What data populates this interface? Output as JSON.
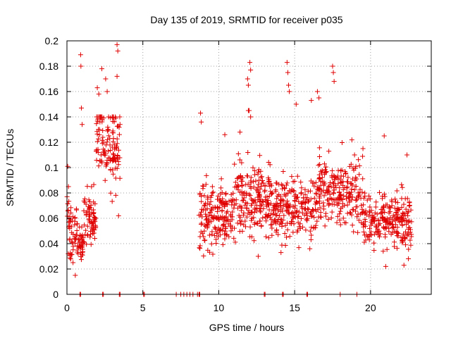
{
  "chart_data": {
    "type": "scatter",
    "title": "Day 135 of 2019, SRMTID for receiver p035",
    "xlabel": "GPS time / hours",
    "ylabel": "SRMTID / TECUs",
    "xlim": [
      0,
      24
    ],
    "ylim": [
      0,
      0.2
    ],
    "x_ticks": [
      0,
      5,
      10,
      15,
      20
    ],
    "x_tick_labels": [
      "0",
      "5",
      "10",
      "15",
      "20"
    ],
    "y_ticks": [
      0,
      0.02,
      0.04,
      0.06,
      0.08,
      0.1,
      0.12,
      0.14,
      0.16,
      0.18,
      0.2
    ],
    "y_tick_labels": [
      "0",
      "0.02",
      "0.04",
      "0.06",
      "0.08",
      "0.1",
      "0.12",
      "0.14",
      "0.16",
      "0.18",
      "0.2"
    ],
    "grid": true,
    "marker": "plus",
    "series": [
      {
        "name": "SRMTID",
        "color": "#e00000",
        "segments": [
          {
            "x_start": 0.0,
            "x_end": 0.7,
            "mean": 0.052,
            "spread": 0.022,
            "n": 55
          },
          {
            "x_start": 0.7,
            "x_end": 1.1,
            "mean": 0.04,
            "spread": 0.012,
            "n": 35
          },
          {
            "x_start": 1.1,
            "x_end": 1.9,
            "mean": 0.06,
            "spread": 0.02,
            "n": 70
          },
          {
            "x_start": 1.9,
            "x_end": 2.4,
            "mean": 0.125,
            "spread": 0.025,
            "n": 40
          },
          {
            "x_start": 2.4,
            "x_end": 3.5,
            "mean": 0.115,
            "spread": 0.03,
            "n": 90
          },
          {
            "x_start": 8.7,
            "x_end": 11.0,
            "mean": 0.063,
            "spread": 0.022,
            "n": 180
          },
          {
            "x_start": 11.0,
            "x_end": 13.5,
            "mean": 0.075,
            "spread": 0.025,
            "n": 200
          },
          {
            "x_start": 13.5,
            "x_end": 16.5,
            "mean": 0.068,
            "spread": 0.022,
            "n": 220
          },
          {
            "x_start": 16.5,
            "x_end": 19.5,
            "mean": 0.082,
            "spread": 0.025,
            "n": 220
          },
          {
            "x_start": 19.5,
            "x_end": 22.7,
            "mean": 0.058,
            "spread": 0.018,
            "n": 240
          }
        ],
        "peaks": [
          {
            "x": 0.05,
            "y": 0.101
          },
          {
            "x": 0.1,
            "y": 0.085
          },
          {
            "x": 0.4,
            "y": 0.025
          },
          {
            "x": 0.55,
            "y": 0.015
          },
          {
            "x": 0.9,
            "y": 0.189
          },
          {
            "x": 0.92,
            "y": 0.18
          },
          {
            "x": 0.95,
            "y": 0.147
          },
          {
            "x": 1.0,
            "y": 0.134
          },
          {
            "x": 2.0,
            "y": 0.163
          },
          {
            "x": 2.1,
            "y": 0.158
          },
          {
            "x": 2.3,
            "y": 0.178
          },
          {
            "x": 2.55,
            "y": 0.17
          },
          {
            "x": 2.65,
            "y": 0.16
          },
          {
            "x": 3.3,
            "y": 0.197
          },
          {
            "x": 3.35,
            "y": 0.192
          },
          {
            "x": 3.3,
            "y": 0.172
          },
          {
            "x": 3.4,
            "y": 0.062
          },
          {
            "x": 8.8,
            "y": 0.143
          },
          {
            "x": 8.85,
            "y": 0.136
          },
          {
            "x": 10.4,
            "y": 0.126
          },
          {
            "x": 11.4,
            "y": 0.128
          },
          {
            "x": 11.9,
            "y": 0.17
          },
          {
            "x": 11.95,
            "y": 0.165
          },
          {
            "x": 11.95,
            "y": 0.145
          },
          {
            "x": 12.0,
            "y": 0.145
          },
          {
            "x": 12.05,
            "y": 0.183
          },
          {
            "x": 12.1,
            "y": 0.177
          },
          {
            "x": 12.1,
            "y": 0.14
          },
          {
            "x": 14.5,
            "y": 0.183
          },
          {
            "x": 14.55,
            "y": 0.175
          },
          {
            "x": 14.6,
            "y": 0.165
          },
          {
            "x": 14.65,
            "y": 0.16
          },
          {
            "x": 15.1,
            "y": 0.15
          },
          {
            "x": 16.1,
            "y": 0.153
          },
          {
            "x": 16.5,
            "y": 0.16
          },
          {
            "x": 16.6,
            "y": 0.155
          },
          {
            "x": 17.5,
            "y": 0.18
          },
          {
            "x": 17.55,
            "y": 0.175
          },
          {
            "x": 17.6,
            "y": 0.168
          },
          {
            "x": 19.5,
            "y": 0.115
          },
          {
            "x": 20.9,
            "y": 0.125
          },
          {
            "x": 22.4,
            "y": 0.11
          },
          {
            "x": 12.6,
            "y": 0.03
          },
          {
            "x": 14.1,
            "y": 0.033
          },
          {
            "x": 16.0,
            "y": 0.036
          },
          {
            "x": 21.0,
            "y": 0.022
          },
          {
            "x": 22.2,
            "y": 0.023
          }
        ],
        "zero_points_x": [
          0.85,
          0.9,
          2.35,
          2.4,
          3.45,
          3.5,
          5.05,
          5.1,
          7.2,
          7.5,
          7.7,
          7.9,
          8.1,
          8.3,
          8.6,
          8.7,
          8.75,
          13.0,
          13.05,
          14.2,
          14.25,
          15.8,
          15.85,
          18.0,
          19.1
        ]
      }
    ]
  }
}
